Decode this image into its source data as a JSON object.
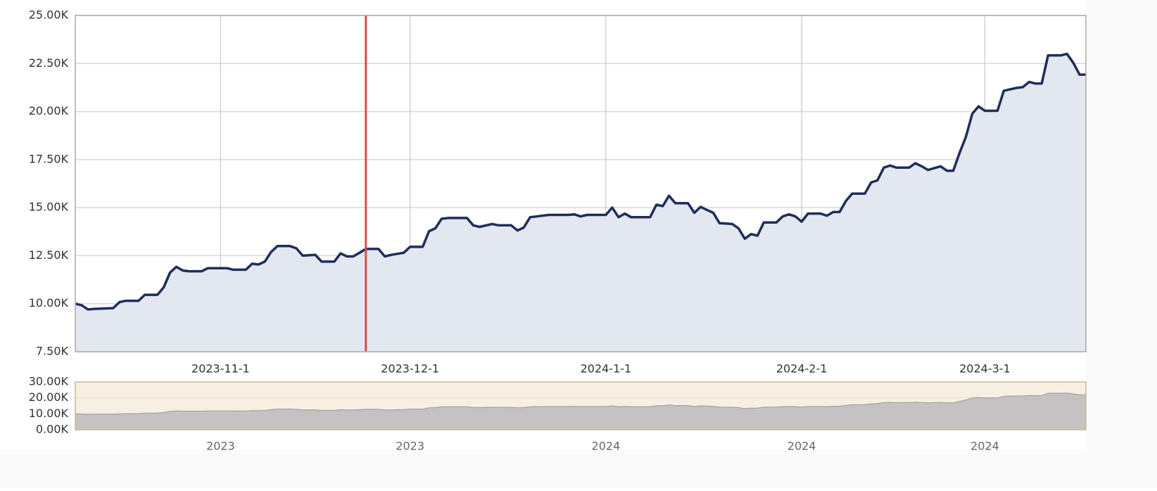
{
  "chart_data": {
    "type": "area",
    "xlim": [
      "2023-10-9",
      "2024-3-17"
    ],
    "xticks": [
      "2023-11-1",
      "2023-12-1",
      "2024-1-1",
      "2024-2-1",
      "2024-3-1"
    ],
    "ylim": [
      7500,
      25000
    ],
    "yticks": [
      {
        "value": 7500,
        "label": "7.50K"
      },
      {
        "value": 10000,
        "label": "10.00K"
      },
      {
        "value": 12500,
        "label": "12.50K"
      },
      {
        "value": 15000,
        "label": "15.00K"
      },
      {
        "value": 17500,
        "label": "17.50K"
      },
      {
        "value": 20000,
        "label": "20.00K"
      },
      {
        "value": 22500,
        "label": "22.50K"
      },
      {
        "value": 25000,
        "label": "25.00K"
      }
    ],
    "grid": true,
    "highlight_x": "2023-11-24",
    "highlight_color": "#c9504f",
    "x": [
      "2023-10-9",
      "2023-10-10",
      "2023-10-11",
      "2023-10-12",
      "2023-10-15",
      "2023-10-16",
      "2023-10-17",
      "2023-10-19",
      "2023-10-20",
      "2023-10-22",
      "2023-10-23",
      "2023-10-24",
      "2023-10-25",
      "2023-10-26",
      "2023-10-27",
      "2023-10-29",
      "2023-10-30",
      "2023-11-2",
      "2023-11-3",
      "2023-11-5",
      "2023-11-6",
      "2023-11-7",
      "2023-11-8",
      "2023-11-9",
      "2023-11-10",
      "2023-11-12",
      "2023-11-13",
      "2023-11-14",
      "2023-11-16",
      "2023-11-17",
      "2023-11-19",
      "2023-11-20",
      "2023-11-21",
      "2023-11-22",
      "2023-11-23",
      "2023-11-24",
      "2023-11-26",
      "2023-11-27",
      "2023-11-28",
      "2023-11-30",
      "2023-12-1",
      "2023-12-3",
      "2023-12-4",
      "2023-12-5",
      "2023-12-6",
      "2023-12-7",
      "2023-12-10",
      "2023-12-11",
      "2023-12-12",
      "2023-12-14",
      "2023-12-15",
      "2023-12-17",
      "2023-12-18",
      "2023-12-19",
      "2023-12-20",
      "2023-12-21",
      "2023-12-23",
      "2023-12-24",
      "2023-12-26",
      "2023-12-27",
      "2023-12-28",
      "2023-12-29",
      "2023-12-31",
      "2024-1-1",
      "2024-1-2",
      "2024-1-3",
      "2024-1-4",
      "2024-1-5",
      "2024-1-8",
      "2024-1-9",
      "2024-1-10",
      "2024-1-11",
      "2024-1-12",
      "2024-1-14",
      "2024-1-15",
      "2024-1-16",
      "2024-1-17",
      "2024-1-18",
      "2024-1-19",
      "2024-1-21",
      "2024-1-22",
      "2024-1-23",
      "2024-1-24",
      "2024-1-25",
      "2024-1-26",
      "2024-1-28",
      "2024-1-29",
      "2024-1-30",
      "2024-1-31",
      "2024-2-1",
      "2024-2-2",
      "2024-2-4",
      "2024-2-5",
      "2024-2-6",
      "2024-2-7",
      "2024-2-8",
      "2024-2-9",
      "2024-2-11",
      "2024-2-12",
      "2024-2-13",
      "2024-2-14",
      "2024-2-15",
      "2024-2-16",
      "2024-2-18",
      "2024-2-19",
      "2024-2-20",
      "2024-2-21",
      "2024-2-23",
      "2024-2-24",
      "2024-2-25",
      "2024-2-26",
      "2024-2-27",
      "2024-2-28",
      "2024-2-29",
      "2024-3-1",
      "2024-3-3",
      "2024-3-4",
      "2024-3-6",
      "2024-3-7",
      "2024-3-8",
      "2024-3-9",
      "2024-3-10",
      "2024-3-11",
      "2024-3-13",
      "2024-3-14",
      "2024-3-15",
      "2024-3-16",
      "2024-3-17"
    ],
    "series": [
      {
        "color": "#1f2d5c",
        "fill": "#e3e7ef",
        "values": [
          10000,
          9920,
          9700,
          9730,
          9770,
          10080,
          10150,
          10150,
          10460,
          10460,
          10850,
          11620,
          11920,
          11730,
          11690,
          11690,
          11850,
          11850,
          11770,
          11770,
          12080,
          12040,
          12190,
          12690,
          13000,
          13000,
          12880,
          12500,
          12540,
          12190,
          12190,
          12620,
          12460,
          12460,
          12650,
          12850,
          12850,
          12460,
          12540,
          12650,
          12960,
          12960,
          13770,
          13920,
          14420,
          14460,
          14460,
          14080,
          14000,
          14150,
          14080,
          14080,
          13810,
          13960,
          14500,
          14540,
          14620,
          14620,
          14620,
          14650,
          14540,
          14620,
          14620,
          14620,
          15000,
          14500,
          14690,
          14500,
          14500,
          15150,
          15080,
          15620,
          15230,
          15230,
          14730,
          15040,
          14880,
          14730,
          14190,
          14150,
          13920,
          13380,
          13620,
          13540,
          14230,
          14230,
          14540,
          14650,
          14540,
          14270,
          14690,
          14690,
          14580,
          14770,
          14770,
          15350,
          15730,
          15730,
          16310,
          16420,
          17080,
          17190,
          17080,
          17080,
          17310,
          17150,
          16960,
          17150,
          16920,
          16920,
          17850,
          18690,
          19880,
          20270,
          20040,
          20040,
          21080,
          21230,
          21270,
          21540,
          21460,
          21460,
          22920,
          22920,
          23000,
          22540,
          21920,
          21920
        ]
      }
    ],
    "navigator": {
      "ylim": [
        0,
        30000
      ],
      "yticks": [
        {
          "value": 0,
          "label": "0.00K"
        },
        {
          "value": 10000,
          "label": "10.00K"
        },
        {
          "value": 20000,
          "label": "20.00K"
        },
        {
          "value": 30000,
          "label": "30.00K"
        }
      ],
      "xticks": [
        {
          "value": "2023-11-1",
          "label": "2023"
        },
        {
          "value": "2023-12-1",
          "label": "2023"
        },
        {
          "value": "2024-1-1",
          "label": "2024"
        },
        {
          "value": "2024-2-1",
          "label": "2024"
        },
        {
          "value": "2024-3-1",
          "label": "2024"
        }
      ]
    }
  }
}
